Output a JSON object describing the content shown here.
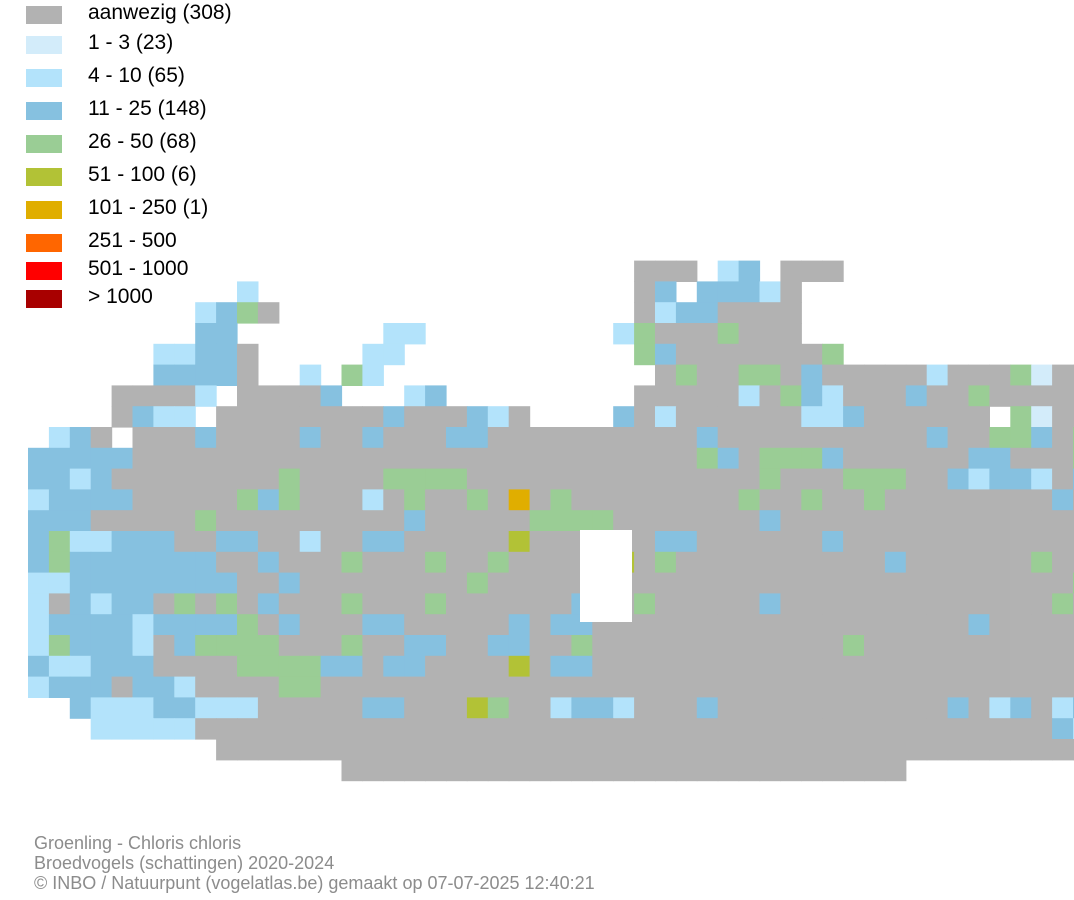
{
  "legend": {
    "items": [
      {
        "label": "aanwezig (308)",
        "color": "#b2b2b2"
      },
      {
        "label": "1 - 3 (23)",
        "color": "#d3ecfa"
      },
      {
        "label": "4 - 10 (65)",
        "color": "#b3e3fb"
      },
      {
        "label": "11 - 25 (148)",
        "color": "#86c1e0"
      },
      {
        "label": "26 - 50 (68)",
        "color": "#9acd95"
      },
      {
        "label": "51 - 100 (6)",
        "color": "#b2c236"
      },
      {
        "label": "101 - 250 (1)",
        "color": "#e0ae00"
      },
      {
        "label": "251 - 500",
        "color": "#ff6600"
      },
      {
        "label": "501 - 1000",
        "color": "#ff0000"
      },
      {
        "label": "> 1000",
        "color": "#a80000"
      }
    ]
  },
  "footer": {
    "species": "Groenling - Chloris chloris",
    "dataset": "Broedvogels (schattingen) 2020-2024",
    "credit": "© INBO / Natuurpunt (vogelatlas.be) gemaakt op 07-07-2025 12:40:21"
  }
}
